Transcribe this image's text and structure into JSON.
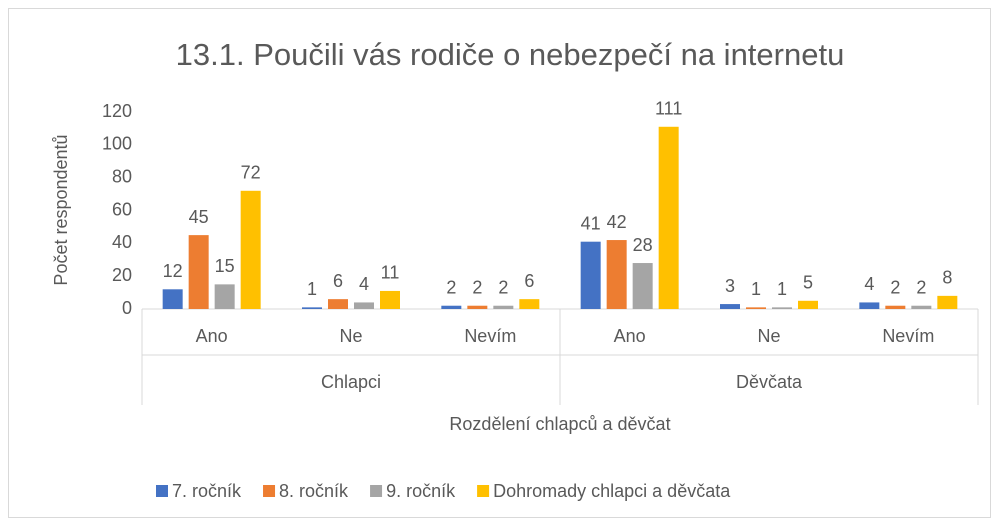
{
  "chart_data": {
    "type": "bar",
    "title": "13.1. Poučili vás rodiče o nebezpečí na internetu",
    "xlabel": "Rozdělení chlapců a děvčat",
    "ylabel": "Počet respondentů",
    "groups": [
      {
        "name": "Chlapci",
        "categories": [
          "Ano",
          "Ne",
          "Nevím"
        ]
      },
      {
        "name": "Děvčata",
        "categories": [
          "Ano",
          "Ne",
          "Nevím"
        ]
      }
    ],
    "series": [
      {
        "name": "7. ročník",
        "color": "#4472c4",
        "values": [
          12,
          1,
          2,
          41,
          3,
          4
        ]
      },
      {
        "name": "8. ročník",
        "color": "#ed7d31",
        "values": [
          45,
          6,
          2,
          42,
          1,
          2
        ]
      },
      {
        "name": "9. ročník",
        "color": "#a5a5a5",
        "values": [
          15,
          4,
          2,
          28,
          1,
          2
        ]
      },
      {
        "name": "Dohromady chlapci a děvčata",
        "color": "#ffc000",
        "values": [
          72,
          11,
          6,
          111,
          5,
          8
        ]
      }
    ],
    "ylim": [
      0,
      120
    ],
    "yticks": [
      0,
      20,
      40,
      60,
      80,
      100,
      120
    ],
    "grid": false,
    "legend": "bottom"
  }
}
